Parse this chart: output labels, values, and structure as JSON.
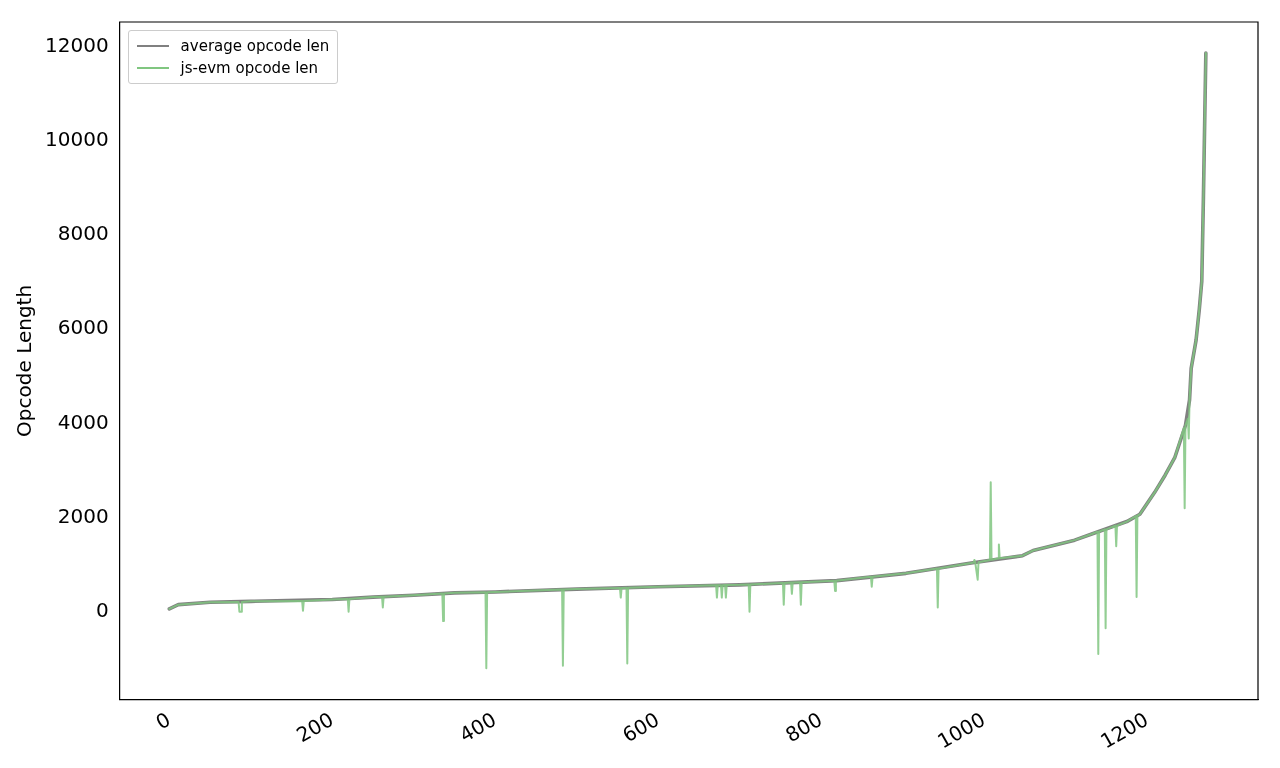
{
  "chart_data": {
    "type": "line",
    "ylabel": "Opcode Length",
    "xlim": [
      -61,
      1336
    ],
    "ylim": [
      -1871,
      12528
    ],
    "xticks": [
      0,
      200,
      400,
      600,
      800,
      1000,
      1200
    ],
    "yticks": [
      0,
      2000,
      4000,
      6000,
      8000,
      10000,
      12000
    ],
    "grid": false,
    "legend": "top left",
    "marker": "none",
    "line_style": "solid",
    "series": [
      {
        "name": "average opcode len",
        "color": "#808080",
        "x": [
          0,
          11,
          50,
          100,
          200,
          250,
          300,
          350,
          400,
          500,
          600,
          700,
          819,
          904,
          920,
          984,
          1047,
          1060,
          1111,
          1132,
          1175,
          1191,
          1209,
          1222,
          1234,
          1247,
          1252,
          1254,
          1260,
          1264,
          1267,
          1269,
          1272
        ],
        "values": [
          60,
          150,
          200,
          220,
          260,
          310,
          350,
          400,
          420,
          480,
          530,
          570,
          660,
          815,
          860,
          1035,
          1190,
          1300,
          1520,
          1650,
          1915,
          2070,
          2530,
          2900,
          3280,
          3960,
          4500,
          5170,
          5770,
          6430,
          7020,
          8780,
          11870
        ]
      },
      {
        "name": "js-evm opcode len",
        "color": "#80c680",
        "x": [
          0,
          11,
          50,
          85,
          86,
          88,
          89,
          100,
          163,
          164,
          165,
          200,
          219,
          220,
          221,
          250,
          261,
          262,
          263,
          300,
          335,
          336,
          337,
          350,
          388,
          389,
          390,
          400,
          482,
          483,
          484,
          500,
          553,
          554,
          555,
          561,
          562,
          563,
          600,
          671,
          672,
          673,
          677,
          678,
          679,
          682,
          683,
          684,
          700,
          711,
          712,
          713,
          753,
          754,
          755,
          763,
          764,
          765,
          774,
          775,
          776,
          816,
          817,
          818,
          861,
          862,
          863,
          904,
          920,
          942,
          943,
          944,
          984,
          987,
          988,
          989,
          992,
          993,
          1007,
          1008,
          1009,
          1017,
          1018,
          1019,
          1047,
          1060,
          1111,
          1132,
          1139,
          1140,
          1141,
          1148,
          1149,
          1150,
          1161,
          1162,
          1163,
          1175,
          1186,
          1187,
          1188,
          1191,
          1209,
          1222,
          1234,
          1245,
          1246,
          1247,
          1250,
          1251,
          1252,
          1254,
          1260,
          1264,
          1267,
          1269,
          1272
        ],
        "values": [
          60,
          150,
          200,
          205,
          0,
          0,
          205,
          220,
          225,
          20,
          225,
          260,
          270,
          0,
          270,
          310,
          320,
          90,
          320,
          350,
          385,
          -200,
          385,
          400,
          415,
          -1200,
          415,
          420,
          470,
          -1150,
          470,
          480,
          505,
          300,
          505,
          510,
          -1100,
          510,
          530,
          560,
          300,
          560,
          562,
          300,
          562,
          565,
          300,
          565,
          570,
          580,
          0,
          580,
          610,
          150,
          610,
          620,
          380,
          620,
          625,
          150,
          625,
          658,
          440,
          660,
          740,
          530,
          740,
          815,
          860,
          920,
          90,
          920,
          1035,
          1045,
          1100,
          1045,
          680,
          1050,
          1100,
          2750,
          1105,
          1130,
          1430,
          1135,
          1190,
          1300,
          1520,
          1650,
          1700,
          -900,
          1700,
          1750,
          -350,
          1750,
          1830,
          1390,
          1830,
          1915,
          2030,
          310,
          2040,
          2070,
          2530,
          2900,
          3280,
          3900,
          2200,
          3960,
          4100,
          3680,
          4500,
          5170,
          5770,
          6430,
          7020,
          8780,
          11870
        ]
      }
    ]
  }
}
